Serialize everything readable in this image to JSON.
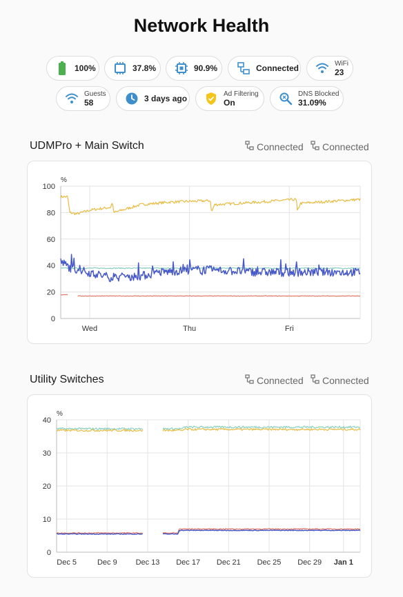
{
  "page": {
    "title": "Network Health"
  },
  "chips": {
    "battery": {
      "value": "100%",
      "icon": "battery-icon"
    },
    "memory": {
      "value": "37.8%",
      "icon": "memory-icon"
    },
    "cpu": {
      "value": "90.9%",
      "icon": "cpu-icon"
    },
    "connection": {
      "value": "Connected",
      "icon": "lan-icon"
    },
    "wifi": {
      "label": "WiFi",
      "value": "23",
      "icon": "wifi-icon"
    },
    "guests": {
      "label": "Guests",
      "value": "58",
      "icon": "wifi-icon"
    },
    "uptime": {
      "value": "3 days ago",
      "icon": "clock-icon"
    },
    "ad_filtering": {
      "label": "Ad Filtering",
      "value": "On",
      "icon": "shield-check-icon"
    },
    "dns_blocked": {
      "label": "DNS Blocked",
      "value": "31.09%",
      "icon": "search-icon"
    }
  },
  "sections": [
    {
      "title": "UDMPro + Main Switch",
      "status": [
        "Connected",
        "Connected"
      ]
    },
    {
      "title": "Utility Switches",
      "status": [
        "Connected",
        "Connected"
      ]
    }
  ],
  "colors": {
    "yellow": "#e8bb42",
    "teal": "#86cfc0",
    "blue": "#4658c8",
    "red": "#e27562",
    "grid": "#e3e3e3",
    "icon_green": "#4caf50",
    "icon_blue": "#3d8ecb",
    "icon_yellow": "#f5c518"
  },
  "chart_data": [
    {
      "type": "line",
      "ylabel": "%",
      "ylim": [
        0,
        100
      ],
      "yticks": [
        0,
        20,
        40,
        60,
        80,
        100
      ],
      "xlim": [
        0,
        3.0
      ],
      "xticks": [
        {
          "x": 0.29,
          "label": "Wed"
        },
        {
          "x": 1.29,
          "label": "Thu"
        },
        {
          "x": 2.29,
          "label": "Fri"
        }
      ],
      "series": [
        {
          "color": "yellow",
          "width": 1.2,
          "base": [
            [
              0,
              92
            ],
            [
              0.07,
              92
            ],
            [
              0.09,
              80
            ],
            [
              0.16,
              79
            ],
            [
              0.3,
              82
            ],
            [
              0.5,
              84
            ],
            [
              0.52,
              88
            ],
            [
              0.53,
              80
            ],
            [
              0.8,
              86
            ],
            [
              1.1,
              88
            ],
            [
              1.5,
              89
            ],
            [
              1.51,
              80
            ],
            [
              1.54,
              86
            ],
            [
              2.0,
              88
            ],
            [
              2.36,
              90
            ],
            [
              2.37,
              81
            ],
            [
              2.4,
              87
            ],
            [
              3.0,
              90
            ]
          ],
          "noise": 1.0,
          "spikes": 0
        },
        {
          "color": "teal",
          "width": 1.2,
          "base": [
            [
              0,
              38
            ],
            [
              3.0,
              38
            ]
          ],
          "noise": 0.4,
          "spikes": 0
        },
        {
          "color": "blue",
          "width": 1.5,
          "base": [
            [
              0,
              43
            ],
            [
              0.1,
              38
            ],
            [
              0.5,
              31
            ],
            [
              0.8,
              32
            ],
            [
              1.0,
              35
            ],
            [
              1.4,
              37
            ],
            [
              2.0,
              35
            ],
            [
              3.0,
              35
            ]
          ],
          "noise": 3.2,
          "spikes": 0.08
        },
        {
          "color": "red",
          "width": 1.2,
          "base": [
            [
              0,
              18
            ],
            [
              0.07,
              18
            ]
          ],
          "noise": 0.2,
          "spikes": 0
        },
        {
          "color": "red",
          "width": 1.2,
          "base": [
            [
              0.17,
              17
            ],
            [
              3.0,
              17
            ]
          ],
          "noise": 0.2,
          "spikes": 0
        }
      ]
    },
    {
      "type": "line",
      "ylabel": "%",
      "ylim": [
        0,
        40
      ],
      "yticks": [
        0,
        10,
        20,
        30,
        40
      ],
      "xlim": [
        0,
        30
      ],
      "xticks": [
        {
          "x": 1,
          "label": "Dec 5"
        },
        {
          "x": 5,
          "label": "Dec 9"
        },
        {
          "x": 9,
          "label": "Dec 13"
        },
        {
          "x": 13,
          "label": "Dec 17"
        },
        {
          "x": 17,
          "label": "Dec 21"
        },
        {
          "x": 21,
          "label": "Dec 25"
        },
        {
          "x": 25,
          "label": "Dec 29"
        },
        {
          "x": 28.35,
          "label": "Jan 1",
          "bold": true
        }
      ],
      "series": [
        {
          "color": "teal",
          "width": 1.2,
          "base": [
            [
              0,
              37.3
            ],
            [
              8.5,
              37.3
            ]
          ],
          "noise": 0.3,
          "spikes": 0
        },
        {
          "color": "yellow",
          "width": 1.2,
          "base": [
            [
              0,
              36.8
            ],
            [
              8.5,
              36.8
            ]
          ],
          "noise": 0.3,
          "spikes": 0
        },
        {
          "color": "teal",
          "width": 1.2,
          "base": [
            [
              10.5,
              37.3
            ],
            [
              12.5,
              37.3
            ],
            [
              12.6,
              37.8
            ],
            [
              30,
              37.8
            ]
          ],
          "noise": 0.3,
          "spikes": 0
        },
        {
          "color": "yellow",
          "width": 1.2,
          "base": [
            [
              10.5,
              36.8
            ],
            [
              12.5,
              36.8
            ],
            [
              12.6,
              37.1
            ],
            [
              30,
              37.1
            ]
          ],
          "noise": 0.3,
          "spikes": 0
        },
        {
          "color": "red",
          "width": 1.2,
          "base": [
            [
              0,
              5.8
            ],
            [
              8.5,
              5.8
            ]
          ],
          "noise": 0.15,
          "spikes": 0
        },
        {
          "color": "blue",
          "width": 1.5,
          "base": [
            [
              0,
              5.5
            ],
            [
              8.5,
              5.5
            ]
          ],
          "noise": 0.1,
          "spikes": 0
        },
        {
          "color": "red",
          "width": 1.2,
          "base": [
            [
              10.5,
              5.8
            ],
            [
              12.0,
              5.8
            ],
            [
              12.1,
              7.0
            ],
            [
              30,
              7.0
            ]
          ],
          "noise": 0.15,
          "spikes": 0
        },
        {
          "color": "blue",
          "width": 1.5,
          "base": [
            [
              10.5,
              5.5
            ],
            [
              12.0,
              5.5
            ],
            [
              12.1,
              6.6
            ],
            [
              30,
              6.6
            ]
          ],
          "noise": 0.1,
          "spikes": 0
        }
      ]
    }
  ]
}
